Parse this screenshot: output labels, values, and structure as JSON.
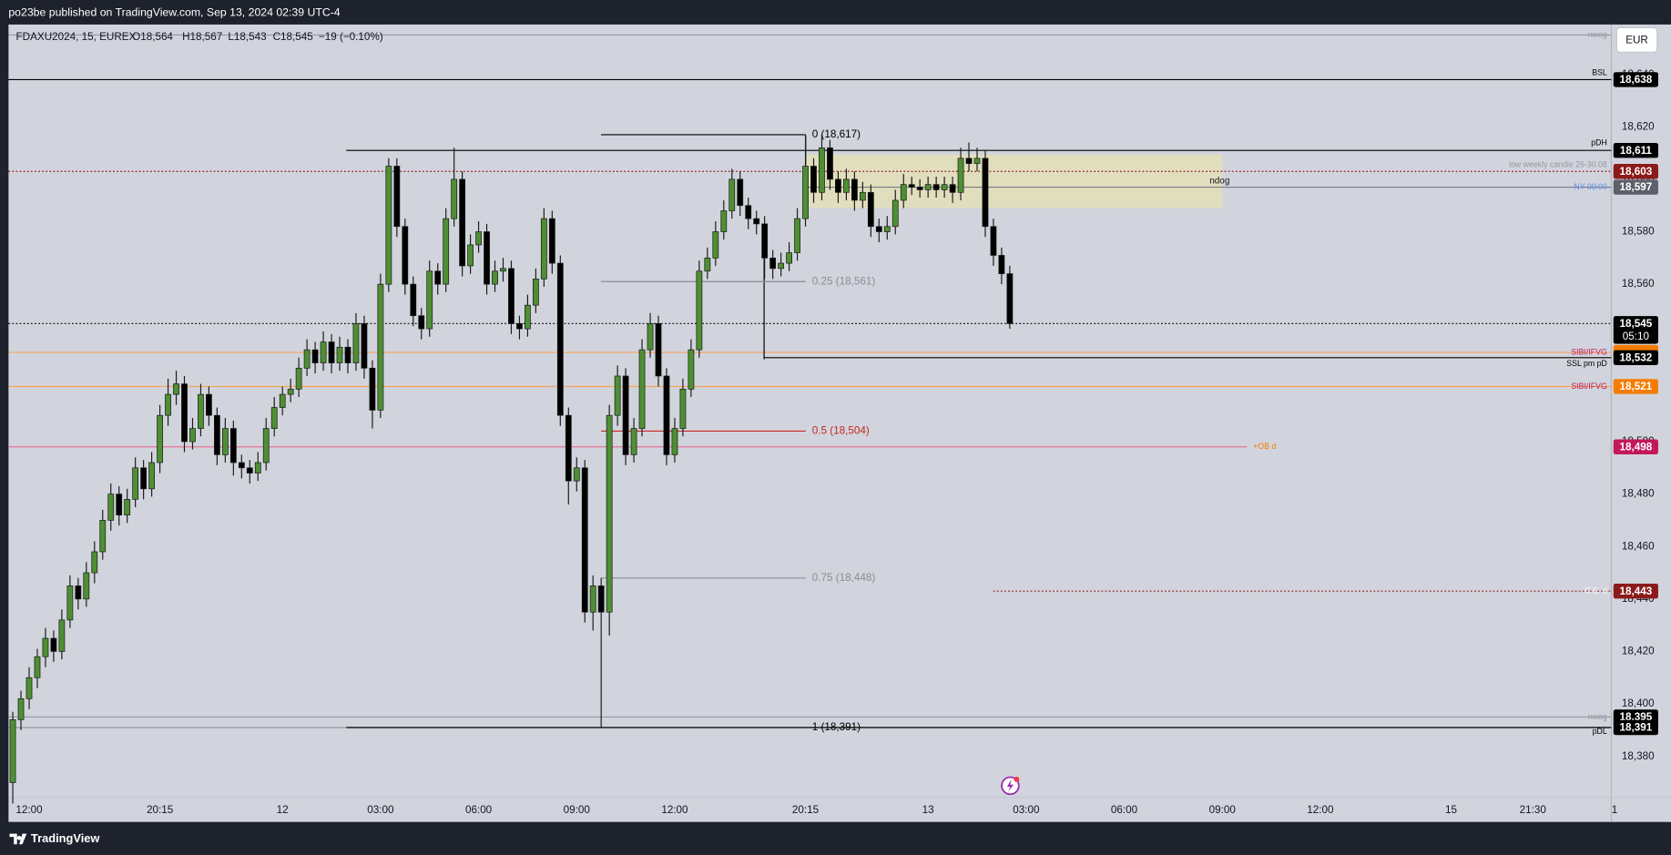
{
  "chart_data": {
    "type": "candlestick",
    "title": "po23be published on TradingView.com, Sep 13, 2024 02:39 UTC-4",
    "legend": {
      "symbol": "FDAXU2024, 15, EUREX",
      "open": "O18,564",
      "high": "H18,567",
      "low": "L18,543",
      "close": "C18,545",
      "change": "−19 (−0.10%)"
    },
    "currency": "EUR",
    "brand": "TradingView",
    "up_color": "#4e8f34",
    "down_color": "#000000",
    "grid": false,
    "ylim": [
      18355,
      18659
    ],
    "yticks": [
      {
        "value": 18380,
        "label": "18,380"
      },
      {
        "value": 18400,
        "label": "18,400"
      },
      {
        "value": 18420,
        "label": "18,420"
      },
      {
        "value": 18440,
        "label": "18,440"
      },
      {
        "value": 18460,
        "label": "18,460"
      },
      {
        "value": 18480,
        "label": "18,480"
      },
      {
        "value": 18500,
        "label": "18,500"
      },
      {
        "value": 18520,
        "label": "18,520"
      },
      {
        "value": 18540,
        "label": "18,540"
      },
      {
        "value": 18560,
        "label": "18,560"
      },
      {
        "value": 18580,
        "label": "18,580"
      },
      {
        "value": 18600,
        "label": "18,600"
      },
      {
        "value": 18620,
        "label": "18,620"
      },
      {
        "value": 18640,
        "label": "18,640"
      }
    ],
    "categories": [
      null,
      null,
      "12:00",
      null,
      null,
      null,
      null,
      null,
      null,
      null,
      null,
      null,
      null,
      null,
      null,
      null,
      null,
      null,
      "20:15",
      null,
      null,
      null,
      null,
      null,
      null,
      null,
      null,
      null,
      null,
      null,
      null,
      null,
      null,
      "12",
      null,
      null,
      null,
      null,
      null,
      null,
      null,
      null,
      null,
      null,
      null,
      "03:00",
      null,
      null,
      null,
      null,
      null,
      null,
      null,
      null,
      null,
      null,
      null,
      "06:00",
      null,
      null,
      null,
      null,
      null,
      null,
      null,
      null,
      null,
      null,
      null,
      "09:00",
      null,
      null,
      null,
      null,
      null,
      null,
      null,
      null,
      null,
      null,
      null,
      "12:00",
      null,
      null,
      null,
      null,
      null,
      null,
      null,
      null,
      null,
      null,
      null,
      null,
      null,
      null,
      null,
      "20:15",
      null,
      null,
      null,
      null,
      null,
      null,
      null,
      null,
      null,
      null,
      null,
      null,
      null,
      null,
      "13",
      null,
      null,
      null,
      null,
      null,
      null,
      null,
      null,
      null,
      null,
      null,
      "03:00",
      null,
      null,
      null,
      null,
      null,
      null,
      null,
      null,
      null,
      null,
      null,
      "06:00",
      null,
      null,
      null,
      null,
      null,
      null,
      null,
      null,
      null,
      null,
      null,
      "09:00",
      null,
      null,
      null,
      null,
      null,
      null,
      null,
      null,
      null,
      null,
      null,
      "12:00",
      null,
      null,
      null,
      null,
      null,
      null,
      null,
      null,
      null,
      null,
      null,
      null,
      null,
      null,
      null,
      "15",
      null,
      null,
      null,
      null,
      null,
      null,
      null,
      null,
      null,
      "21:30",
      null,
      null,
      null,
      null,
      null,
      null,
      null,
      null,
      null,
      "1"
    ],
    "open": [
      18370,
      18394,
      18402,
      18410,
      18418,
      18425,
      18420,
      18432,
      18445,
      18440,
      18450,
      18458,
      18470,
      18480,
      18472,
      18478,
      18490,
      18482,
      18492,
      18510,
      18518,
      18522,
      18500,
      18505,
      18518,
      18510,
      18495,
      18505,
      18492,
      18490,
      18488,
      18492,
      18505,
      18513,
      18518,
      18520,
      18528,
      18535,
      18530,
      18538,
      18530,
      18536,
      18530,
      18545,
      18528,
      18512,
      18560,
      18605,
      18582,
      18560,
      18548,
      18543,
      18565,
      18560,
      18585,
      18600,
      18567,
      18575,
      18580,
      18560,
      18565,
      18566,
      18545,
      18543,
      18552,
      18562,
      18585,
      18568,
      18510,
      18485,
      18490,
      18435,
      18445,
      18435,
      18510,
      18525,
      18495,
      18505,
      18535,
      18545,
      18525,
      18495,
      18505,
      18520,
      18535,
      18565,
      18570,
      18580,
      18588,
      18600,
      18590,
      18585,
      18583,
      18570,
      18566,
      18568,
      18572,
      18585,
      18605,
      18595,
      18612,
      18600,
      18595,
      18600,
      18592,
      18595,
      18582,
      18580,
      18582,
      18592,
      18598,
      18597,
      18596,
      18598,
      18596,
      18598,
      18595,
      18608,
      18606,
      18608,
      18582,
      18571,
      18564,
      null,
      null,
      null,
      null,
      null,
      null,
      null,
      null,
      null,
      null,
      null,
      null,
      null,
      null,
      null,
      null,
      null,
      null,
      null,
      null,
      null,
      null,
      null,
      null,
      null,
      null,
      null,
      null,
      null,
      null,
      null,
      null,
      null,
      null,
      null,
      null,
      null,
      null,
      null,
      null,
      null,
      null,
      null,
      null,
      null,
      null,
      null,
      null,
      null,
      null,
      null,
      null,
      null,
      null,
      null,
      null,
      null,
      null,
      null,
      null,
      null,
      null,
      null,
      null,
      null,
      null,
      null,
      null,
      null,
      null,
      null,
      null,
      null,
      null
    ],
    "high": [
      18397,
      18405,
      18414,
      18421,
      18429,
      18428,
      18436,
      18449,
      18448,
      18454,
      18462,
      18474,
      18484,
      18483,
      18482,
      18494,
      18493,
      18496,
      18514,
      18524,
      18527,
      18525,
      18509,
      18522,
      18521,
      18513,
      18509,
      18508,
      18495,
      18493,
      18496,
      18509,
      18517,
      18521,
      18524,
      18532,
      18539,
      18538,
      18542,
      18541,
      18540,
      18539,
      18549,
      18548,
      18531,
      18564,
      18608,
      18608,
      18585,
      18563,
      18551,
      18569,
      18568,
      18589,
      18612,
      18603,
      18579,
      18584,
      18583,
      18569,
      18570,
      18569,
      18548,
      18556,
      18566,
      18589,
      18588,
      18571,
      18513,
      18494,
      18493,
      18449,
      18448,
      18514,
      18529,
      18528,
      18509,
      18539,
      18549,
      18548,
      18528,
      18509,
      18524,
      18539,
      18569,
      18574,
      18584,
      18592,
      18604,
      18603,
      18593,
      18588,
      18586,
      18573,
      18572,
      18576,
      18589,
      18617,
      18608,
      18617,
      18615,
      18603,
      18604,
      18603,
      18599,
      18598,
      18585,
      18586,
      18596,
      18602,
      18601,
      18600,
      18601,
      18601,
      18601,
      18601,
      18612,
      18614,
      18612,
      18611,
      18585,
      18574,
      18567,
      null,
      null,
      null,
      null,
      null,
      null,
      null,
      null,
      null,
      null,
      null,
      null,
      null,
      null,
      null,
      null,
      null,
      null,
      null,
      null,
      null,
      null,
      null,
      null,
      null,
      null,
      null,
      null,
      null,
      null,
      null,
      null,
      null,
      null,
      null,
      null,
      null,
      null,
      null,
      null,
      null,
      null,
      null,
      null,
      null,
      null,
      null,
      null,
      null,
      null,
      null,
      null,
      null,
      null,
      null,
      null,
      null,
      null,
      null,
      null,
      null,
      null,
      null,
      null,
      null,
      null,
      null,
      null,
      null,
      null,
      null,
      null,
      null,
      null
    ],
    "low": [
      18362,
      18390,
      18398,
      18406,
      18414,
      18416,
      18417,
      18429,
      18436,
      18437,
      18446,
      18455,
      18466,
      18468,
      18469,
      18475,
      18478,
      18479,
      18488,
      18506,
      18514,
      18496,
      18497,
      18502,
      18506,
      18491,
      18492,
      18487,
      18486,
      18484,
      18485,
      18489,
      18502,
      18510,
      18515,
      18517,
      18525,
      18526,
      18527,
      18526,
      18527,
      18526,
      18527,
      18524,
      18505,
      18509,
      18557,
      18578,
      18556,
      18544,
      18539,
      18540,
      18556,
      18557,
      18582,
      18563,
      18564,
      18572,
      18556,
      18557,
      18561,
      18541,
      18539,
      18540,
      18549,
      18559,
      18564,
      18506,
      18476,
      18481,
      18431,
      18428,
      18391,
      18426,
      18506,
      18491,
      18492,
      18502,
      18532,
      18521,
      18491,
      18492,
      18502,
      18517,
      18532,
      18562,
      18567,
      18577,
      18585,
      18586,
      18581,
      18579,
      18562,
      18562,
      18563,
      18565,
      18569,
      18582,
      18591,
      18592,
      18596,
      18591,
      18592,
      18588,
      18589,
      18578,
      18576,
      18577,
      18579,
      18589,
      18594,
      18593,
      18593,
      18593,
      18593,
      18591,
      18592,
      18603,
      18603,
      18578,
      18567,
      18560,
      18543,
      null,
      null,
      null,
      null,
      null,
      null,
      null,
      null,
      null,
      null,
      null,
      null,
      null,
      null,
      null,
      null,
      null,
      null,
      null,
      null,
      null,
      null,
      null,
      null,
      null,
      null,
      null,
      null,
      null,
      null,
      null,
      null,
      null,
      null,
      null,
      null,
      null,
      null,
      null,
      null,
      null,
      null,
      null,
      null,
      null,
      null,
      null,
      null,
      null,
      null,
      null,
      null,
      null,
      null,
      null,
      null,
      null,
      null,
      null,
      null,
      null,
      null,
      null,
      null,
      null,
      null,
      null,
      null,
      null,
      null,
      null,
      null,
      null,
      null
    ],
    "close": [
      18394,
      18402,
      18410,
      18418,
      18425,
      18420,
      18432,
      18445,
      18440,
      18450,
      18458,
      18470,
      18480,
      18472,
      18478,
      18490,
      18482,
      18492,
      18510,
      18518,
      18522,
      18500,
      18505,
      18518,
      18510,
      18495,
      18505,
      18492,
      18490,
      18488,
      18492,
      18505,
      18513,
      18518,
      18520,
      18528,
      18535,
      18530,
      18538,
      18530,
      18536,
      18530,
      18545,
      18528,
      18512,
      18560,
      18605,
      18582,
      18560,
      18548,
      18543,
      18565,
      18560,
      18585,
      18600,
      18567,
      18575,
      18580,
      18560,
      18565,
      18566,
      18545,
      18543,
      18552,
      18562,
      18585,
      18568,
      18510,
      18485,
      18490,
      18435,
      18445,
      18435,
      18510,
      18525,
      18495,
      18505,
      18535,
      18545,
      18525,
      18495,
      18505,
      18520,
      18535,
      18565,
      18570,
      18580,
      18588,
      18600,
      18590,
      18585,
      18583,
      18570,
      18566,
      18568,
      18572,
      18585,
      18605,
      18595,
      18612,
      18600,
      18595,
      18600,
      18592,
      18595,
      18582,
      18580,
      18582,
      18592,
      18598,
      18597,
      18596,
      18598,
      18596,
      18598,
      18595,
      18608,
      18606,
      18608,
      18582,
      18571,
      18564,
      18545,
      null,
      null,
      null,
      null,
      null,
      null,
      null,
      null,
      null,
      null,
      null,
      null,
      null,
      null,
      null,
      null,
      null,
      null,
      null,
      null,
      null,
      null,
      null,
      null,
      null,
      null,
      null,
      null,
      null,
      null,
      null,
      null,
      null,
      null,
      null,
      null,
      null,
      null,
      null,
      null,
      null,
      null,
      null,
      null,
      null,
      null,
      null,
      null,
      null,
      null,
      null,
      null,
      null,
      null,
      null,
      null,
      null,
      null,
      null,
      null,
      null,
      null,
      null,
      null,
      null,
      null,
      null,
      null,
      null,
      null,
      null,
      null,
      null,
      null
    ],
    "last_price": {
      "value": 18545,
      "label": "18,545",
      "countdown": "05:10",
      "color": "#000000"
    },
    "levels": [
      {
        "label": "nwog",
        "value": 18655,
        "color": "#9598a1",
        "label_color": "#9598a1"
      },
      {
        "label": "BSL",
        "value": 18638,
        "value_label": "18,638",
        "color": "#000000",
        "label_color": "#000000",
        "badge_color": "#000000"
      },
      {
        "label": "pDH",
        "value": 18611,
        "value_label": "18,611",
        "color": "#000000",
        "label_color": "#000000",
        "badge_color": "#000000"
      },
      {
        "label": "low weekly candle 26-30.08",
        "value": 18603,
        "value_label": "18,603",
        "color": "#8b1a1a",
        "label_color": "#9598a1",
        "badge_color": "#8b1a1a"
      },
      {
        "label": "NY 00:00",
        "value": 18597,
        "value_label": "18,597",
        "color": "#787b86",
        "label_color": "#5b8def",
        "badge_color": "#5d606b"
      },
      {
        "label": "SIBI/IFVG",
        "value": 18534,
        "color": "#f5a35c",
        "label_color": "#c2185b",
        "badge_color": "#f57c00"
      },
      {
        "label": "SSL pm pD",
        "value": 18532,
        "value_label": "18,532",
        "color": "#000000",
        "label_color": "#000000",
        "badge_color": "#000000"
      },
      {
        "label": "SIBI/IFVG",
        "value": 18521,
        "value_label": "18,521",
        "color": "#f5a35c",
        "label_color": "#c2185b",
        "badge_color": "#f57c00"
      },
      {
        "label": "+OB d",
        "value": 18498,
        "value_label": "18,498",
        "color": "#e57399",
        "label_color": "#f57c00",
        "badge_color": "#c2185b"
      },
      {
        "label": "C.E. d",
        "value": 18443,
        "value_label": "18,443",
        "color": "#8b1a1a",
        "label_color": "#ffffff",
        "badge_color": "#8b1a1a"
      },
      {
        "label": "nwog",
        "value": 18395,
        "value_label": "18,395",
        "color": "#9598a1",
        "label_color": "#9598a1",
        "badge_color": "#000000"
      },
      {
        "label": "pDL",
        "value": 18391,
        "value_label": "18,391",
        "color": "#9598a1",
        "label_color": "#000000",
        "badge_color": "#000000"
      }
    ],
    "fib": [
      {
        "label": "0 (18,617)",
        "value": 18617,
        "color": "#000000"
      },
      {
        "label": "0.25 (18,561)",
        "value": 18561,
        "color": "#8a8d96"
      },
      {
        "label": "0.5 (18,504)",
        "value": 18504,
        "color": "#c62828"
      },
      {
        "label": "0.75 (18,448)",
        "value": 18448,
        "color": "#8a8d96"
      },
      {
        "label": "1 (18,391)",
        "value": 18391,
        "color": "#000000"
      }
    ],
    "annotations": [
      "ndog"
    ]
  }
}
